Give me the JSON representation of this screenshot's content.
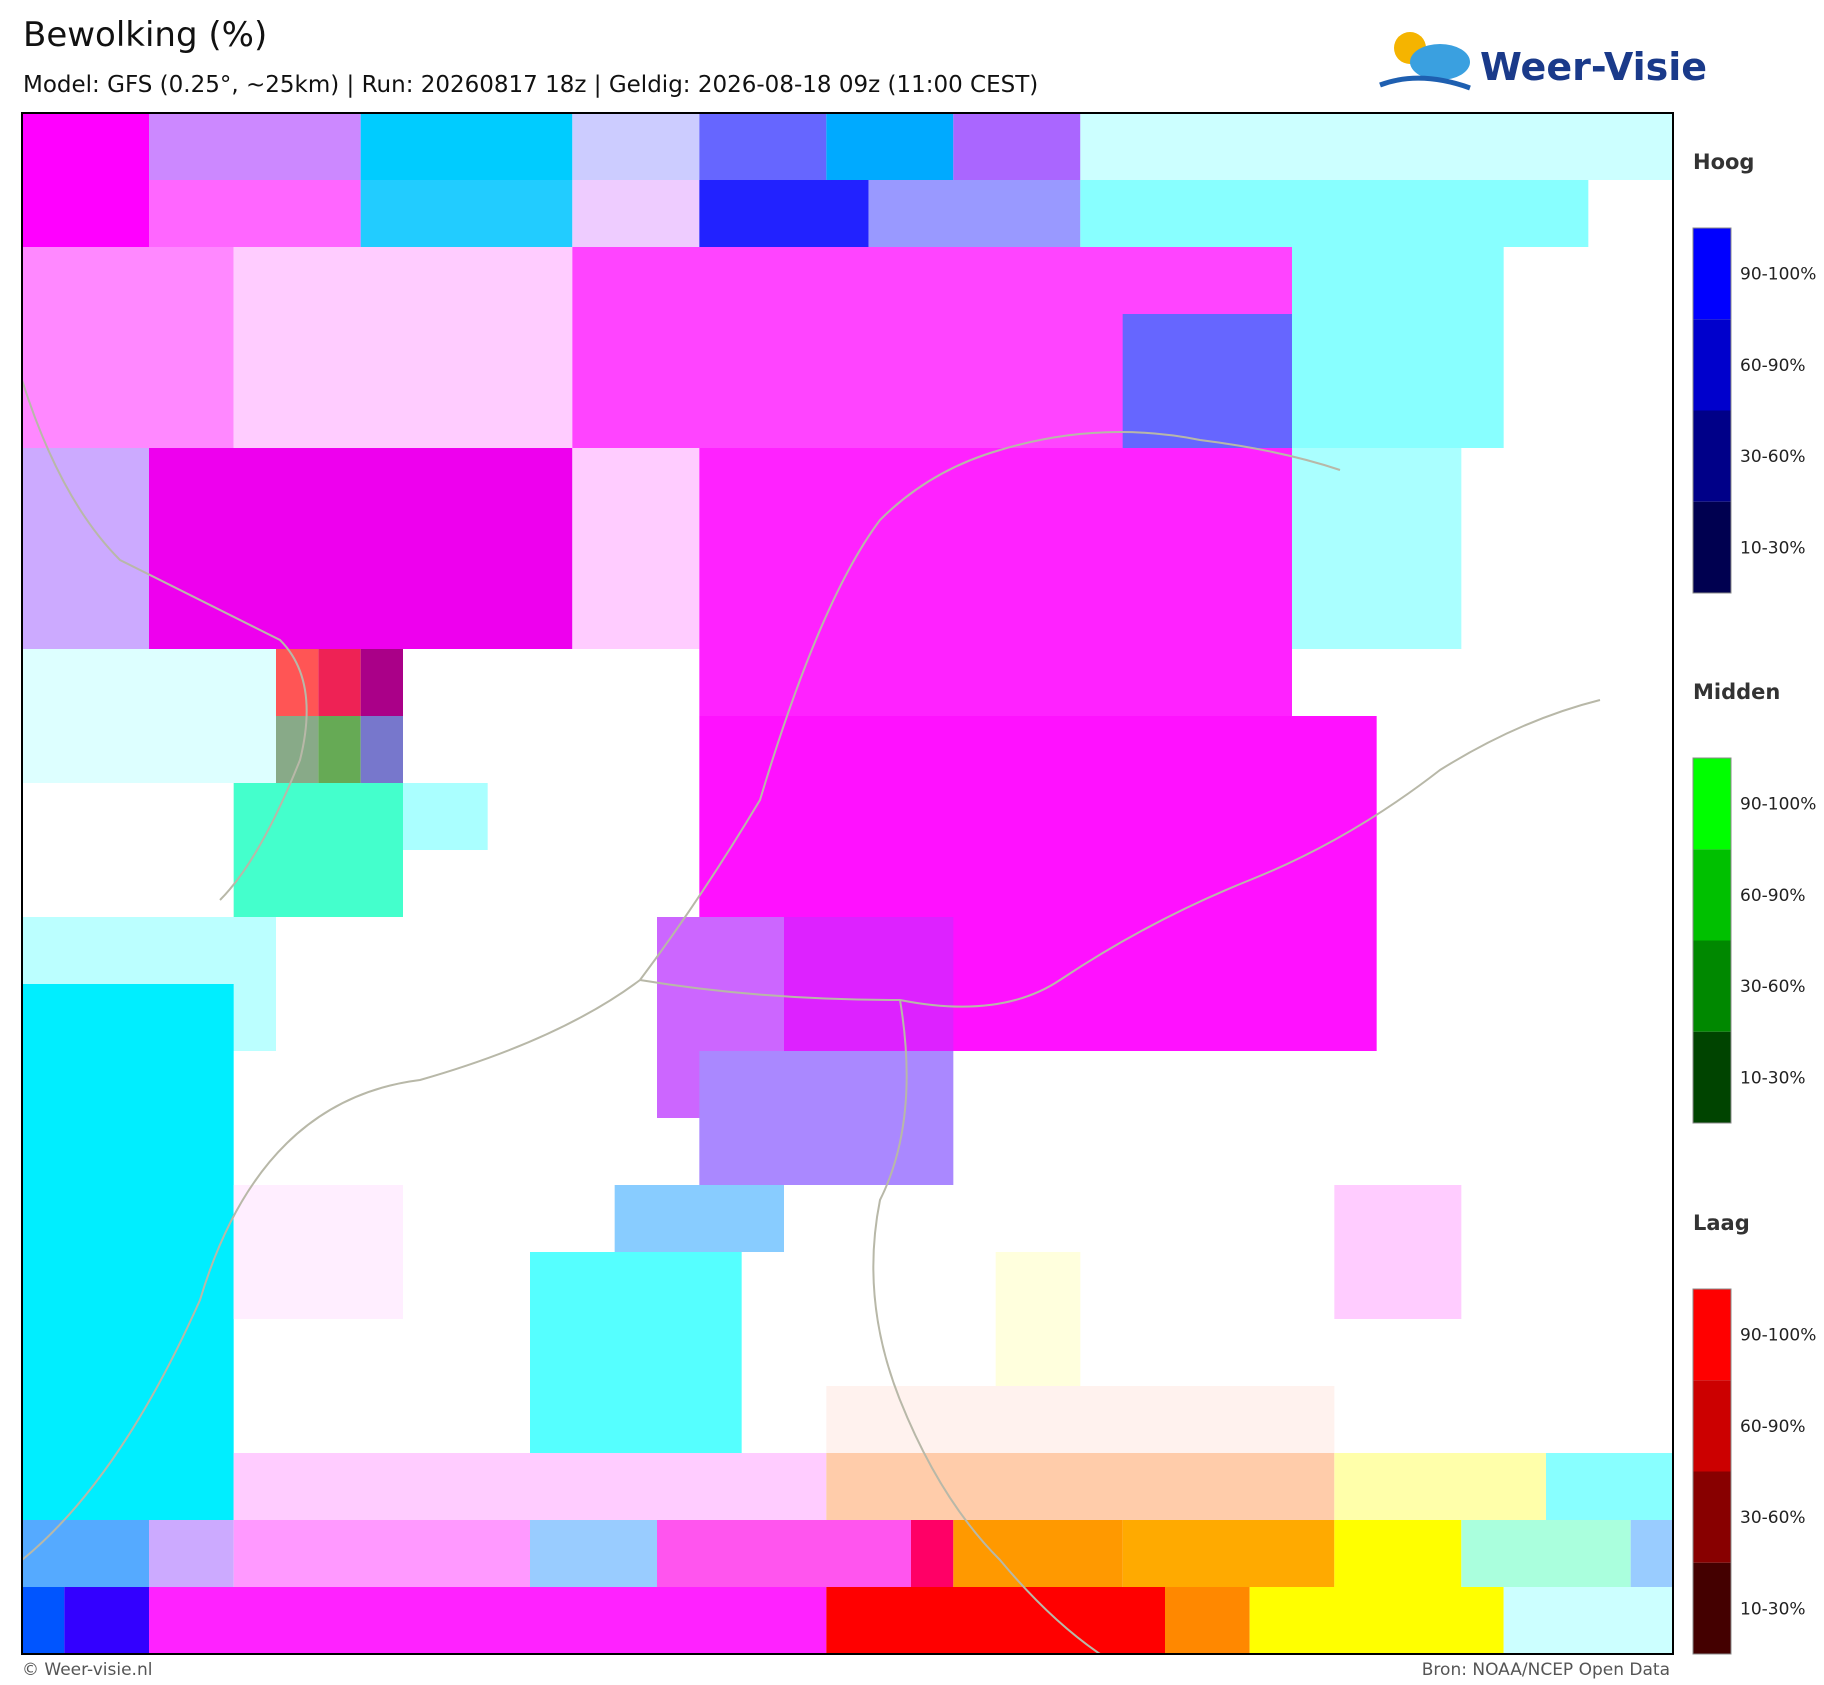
{
  "header": {
    "title": "Bewolking (%)",
    "subtitle": "Model: GFS (0.25°, ~25km)  |  Run: 20260817 18z  |  Geldig: 2026-08-18 09z (11:00 CEST)",
    "logo": "Weer-Visie"
  },
  "legend": [
    {
      "title": "Hoog",
      "labels": [
        "90-100%",
        "60-90%",
        "30-60%",
        "10-30%"
      ]
    },
    {
      "title": "Midden",
      "labels": [
        "90-100%",
        "60-90%",
        "30-60%",
        "10-30%"
      ]
    },
    {
      "title": "Laag",
      "labels": [
        "90-100%",
        "60-90%",
        "30-60%",
        "10-30%"
      ]
    }
  ],
  "footer": {
    "left": "© Weer-visie.nl",
    "right": "Bron: NOAA/NCEP Open Data"
  }
}
